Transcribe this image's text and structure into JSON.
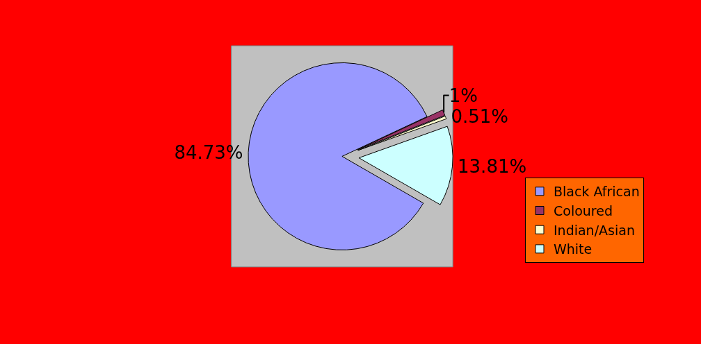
{
  "chart_data": {
    "type": "pie",
    "categories": [
      "Black African",
      "Coloured",
      "Indian/Asian",
      "White"
    ],
    "values": [
      84.73,
      1,
      0.51,
      13.81
    ],
    "colors": [
      "#9999ff",
      "#993366",
      "#ffffcc",
      "#ccffff"
    ],
    "value_labels": [
      "84.73%",
      "1%",
      "0.51%",
      "13.81%"
    ],
    "legend": "right"
  }
}
